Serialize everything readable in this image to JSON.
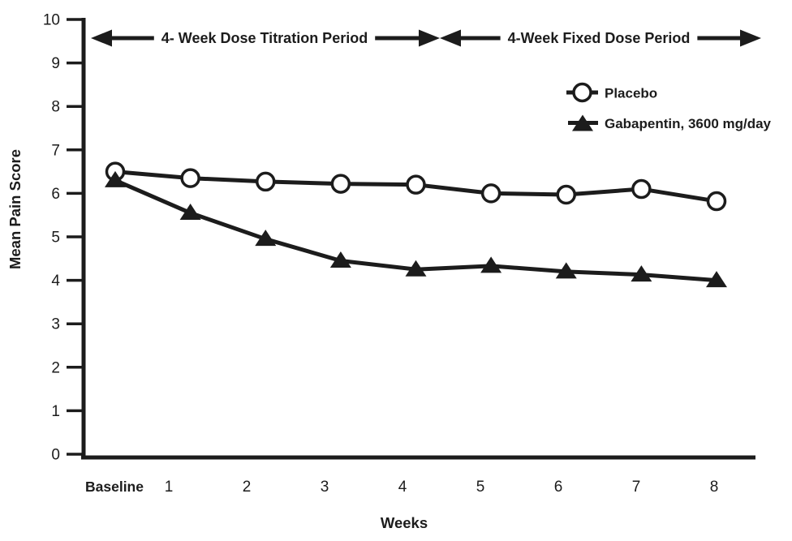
{
  "chart_data": {
    "type": "line",
    "title": "",
    "categories": [
      "Baseline",
      "1",
      "2",
      "3",
      "4",
      "5",
      "6",
      "7",
      "8"
    ],
    "series": [
      {
        "name": "Placebo",
        "marker": "open-circle",
        "values": [
          6.5,
          6.35,
          6.27,
          6.22,
          6.2,
          6.0,
          5.97,
          6.1,
          5.82
        ]
      },
      {
        "name": "Gabapentin, 3600 mg/day",
        "marker": "filled-triangle",
        "values": [
          6.3,
          5.55,
          4.95,
          4.45,
          4.25,
          4.33,
          4.2,
          4.13,
          4.0
        ]
      }
    ],
    "xlabel": "Weeks",
    "ylabel": "Mean Pain Score",
    "ylim": [
      0,
      10
    ],
    "yticks": [
      0,
      1,
      2,
      3,
      4,
      5,
      6,
      7,
      8,
      9,
      10
    ],
    "grid": false,
    "legend_position": "upper-right",
    "line_color": "#1c1c1c",
    "background": "#ffffff",
    "annotations": [
      {
        "text": "4- Week Dose Titration Period",
        "style": "double-headed-arrow"
      },
      {
        "text": "4-Week Fixed Dose Period",
        "style": "double-headed-arrow"
      }
    ]
  }
}
